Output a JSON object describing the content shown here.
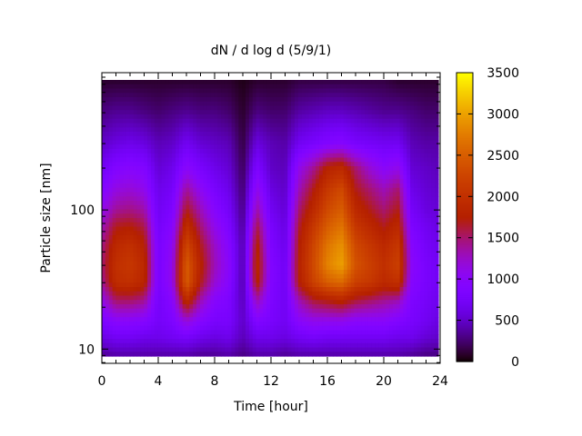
{
  "chart_data": {
    "type": "heatmap",
    "title": "dN / d log d (5/9/1)",
    "xlabel": "Time [hour]",
    "ylabel": "Particle size [nm]",
    "xlim": [
      0,
      24
    ],
    "ylim": [
      7.9,
      970
    ],
    "yscale": "log",
    "x_ticks": [
      "0",
      "4",
      "8",
      "12",
      "16",
      "20",
      "24"
    ],
    "y_ticks": [
      "10",
      "100"
    ],
    "colorbar": {
      "range": [
        0,
        3500
      ],
      "ticks": [
        "0",
        "500",
        "1000",
        "1500",
        "2000",
        "2500",
        "3000",
        "3500"
      ],
      "colormap": "black-purple-red-orange-yellow"
    },
    "time_hours": [
      0,
      1,
      2,
      3,
      4,
      5,
      6,
      7,
      8,
      9,
      10,
      11,
      12,
      13,
      14,
      15,
      16,
      17,
      18,
      19,
      20,
      21,
      22,
      23,
      24
    ],
    "sizes_nm": [
      9,
      12,
      16,
      22,
      30,
      40,
      55,
      75,
      100,
      140,
      200,
      300,
      500,
      850
    ],
    "values": [
      [
        350,
        400,
        400,
        400,
        400,
        400,
        400,
        350,
        350,
        400,
        300,
        400,
        400,
        350,
        400,
        400,
        400,
        400,
        400,
        400,
        400,
        400,
        350,
        300,
        300
      ],
      [
        600,
        700,
        700,
        650,
        650,
        700,
        750,
        650,
        600,
        650,
        450,
        650,
        650,
        600,
        700,
        750,
        700,
        700,
        700,
        700,
        700,
        650,
        650,
        550,
        500
      ],
      [
        850,
        1000,
        1000,
        950,
        750,
        850,
        1200,
        950,
        800,
        800,
        500,
        900,
        800,
        700,
        1000,
        1100,
        1100,
        1100,
        1000,
        1000,
        1000,
        900,
        800,
        700,
        600
      ],
      [
        1100,
        1500,
        1500,
        1400,
        750,
        950,
        1900,
        1300,
        950,
        850,
        450,
        1300,
        850,
        700,
        1300,
        1600,
        1700,
        1800,
        1600,
        1500,
        1400,
        1300,
        850,
        750,
        650
      ],
      [
        1400,
        1950,
        2000,
        1850,
        800,
        1100,
        2500,
        1700,
        1200,
        950,
        400,
        1800,
        900,
        700,
        1750,
        2200,
        2500,
        2600,
        2200,
        2100,
        1900,
        2000,
        950,
        800,
        700
      ],
      [
        1500,
        2000,
        2100,
        1900,
        800,
        1100,
        2500,
        1800,
        1300,
        1000,
        400,
        1900,
        900,
        700,
        1800,
        2300,
        2800,
        3000,
        2400,
        2200,
        2000,
        2200,
        1000,
        800,
        700
      ],
      [
        1450,
        1900,
        2000,
        1800,
        800,
        1050,
        2300,
        1700,
        1250,
        950,
        400,
        1800,
        850,
        650,
        1750,
        2250,
        2700,
        2900,
        2300,
        2100,
        1900,
        2100,
        950,
        750,
        650
      ],
      [
        1300,
        1700,
        1750,
        1600,
        750,
        950,
        2000,
        1500,
        1100,
        850,
        350,
        1600,
        800,
        600,
        1650,
        2100,
        2500,
        2700,
        2100,
        1900,
        1700,
        1900,
        850,
        700,
        600
      ],
      [
        1100,
        1400,
        1450,
        1350,
        700,
        850,
        1700,
        1300,
        950,
        750,
        300,
        1350,
        700,
        550,
        1500,
        1900,
        2300,
        2500,
        1900,
        1700,
        1500,
        1700,
        750,
        600,
        550
      ],
      [
        900,
        1150,
        1200,
        1100,
        650,
        750,
        1400,
        1050,
        800,
        650,
        250,
        1100,
        600,
        500,
        1300,
        1700,
        2100,
        2300,
        1700,
        1500,
        1300,
        1500,
        650,
        550,
        500
      ],
      [
        700,
        900,
        950,
        900,
        550,
        650,
        1000,
        800,
        650,
        550,
        200,
        850,
        500,
        450,
        1100,
        1400,
        1800,
        1900,
        1500,
        1200,
        1000,
        1100,
        550,
        500,
        450
      ],
      [
        500,
        600,
        650,
        600,
        450,
        500,
        700,
        550,
        500,
        450,
        150,
        600,
        450,
        400,
        700,
        800,
        900,
        950,
        800,
        750,
        700,
        700,
        450,
        400,
        400
      ],
      [
        300,
        350,
        350,
        300,
        250,
        300,
        350,
        300,
        300,
        250,
        100,
        300,
        250,
        250,
        400,
        450,
        500,
        500,
        450,
        400,
        350,
        350,
        300,
        250,
        250
      ],
      [
        100,
        100,
        100,
        100,
        100,
        100,
        100,
        100,
        100,
        100,
        50,
        100,
        100,
        100,
        150,
        150,
        150,
        150,
        150,
        150,
        150,
        100,
        100,
        100,
        100
      ]
    ]
  }
}
